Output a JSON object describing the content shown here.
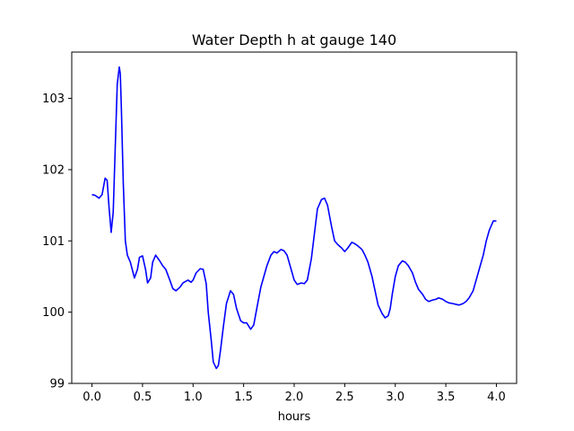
{
  "chart_data": {
    "type": "line",
    "title": "Water Depth h at gauge 140",
    "xlabel": "hours",
    "ylabel": "",
    "xlim": [
      -0.2,
      4.2
    ],
    "ylim": [
      99.0,
      103.65
    ],
    "grid": false,
    "xticks": [
      0.0,
      0.5,
      1.0,
      1.5,
      2.0,
      2.5,
      3.0,
      3.5,
      4.0
    ],
    "xtick_labels": [
      "0.0",
      "0.5",
      "1.0",
      "1.5",
      "2.0",
      "2.5",
      "3.0",
      "3.5",
      "4.0"
    ],
    "yticks": [
      99,
      100,
      101,
      102,
      103
    ],
    "ytick_labels": [
      "99",
      "100",
      "101",
      "102",
      "103"
    ],
    "series": [
      {
        "color": "#0000ff",
        "x": [
          0.0,
          0.03,
          0.07,
          0.1,
          0.13,
          0.15,
          0.17,
          0.19,
          0.21,
          0.23,
          0.25,
          0.27,
          0.28,
          0.29,
          0.31,
          0.33,
          0.35,
          0.38,
          0.42,
          0.45,
          0.47,
          0.5,
          0.53,
          0.55,
          0.58,
          0.6,
          0.63,
          0.67,
          0.7,
          0.73,
          0.77,
          0.8,
          0.83,
          0.87,
          0.9,
          0.95,
          0.98,
          1.0,
          1.03,
          1.07,
          1.1,
          1.13,
          1.15,
          1.18,
          1.2,
          1.23,
          1.25,
          1.27,
          1.3,
          1.33,
          1.37,
          1.4,
          1.43,
          1.47,
          1.5,
          1.53,
          1.57,
          1.6,
          1.63,
          1.67,
          1.7,
          1.73,
          1.77,
          1.8,
          1.83,
          1.87,
          1.9,
          1.93,
          1.97,
          2.0,
          2.03,
          2.07,
          2.1,
          2.13,
          2.17,
          2.2,
          2.23,
          2.27,
          2.3,
          2.33,
          2.35,
          2.37,
          2.4,
          2.43,
          2.47,
          2.5,
          2.53,
          2.57,
          2.6,
          2.63,
          2.67,
          2.7,
          2.73,
          2.77,
          2.8,
          2.83,
          2.87,
          2.9,
          2.93,
          2.95,
          2.97,
          3.0,
          3.03,
          3.07,
          3.1,
          3.13,
          3.17,
          3.2,
          3.23,
          3.27,
          3.3,
          3.33,
          3.37,
          3.4,
          3.43,
          3.47,
          3.5,
          3.53,
          3.57,
          3.6,
          3.63,
          3.67,
          3.7,
          3.73,
          3.77,
          3.8,
          3.83,
          3.87,
          3.9,
          3.93,
          3.97,
          4.0
        ],
        "y": [
          101.65,
          101.64,
          101.6,
          101.65,
          101.88,
          101.85,
          101.45,
          101.12,
          101.4,
          102.3,
          103.2,
          103.44,
          103.35,
          102.9,
          101.8,
          101.0,
          100.8,
          100.7,
          100.48,
          100.6,
          100.77,
          100.79,
          100.6,
          100.41,
          100.48,
          100.7,
          100.8,
          100.72,
          100.65,
          100.6,
          100.45,
          100.33,
          100.3,
          100.35,
          100.41,
          100.45,
          100.42,
          100.45,
          100.55,
          100.61,
          100.6,
          100.4,
          100.0,
          99.6,
          99.3,
          99.21,
          99.25,
          99.45,
          99.8,
          100.12,
          100.3,
          100.25,
          100.05,
          99.88,
          99.85,
          99.85,
          99.76,
          99.82,
          100.05,
          100.35,
          100.5,
          100.65,
          100.8,
          100.85,
          100.83,
          100.88,
          100.86,
          100.8,
          100.6,
          100.45,
          100.39,
          100.41,
          100.4,
          100.45,
          100.75,
          101.1,
          101.45,
          101.58,
          101.6,
          101.5,
          101.35,
          101.2,
          101.0,
          100.95,
          100.9,
          100.85,
          100.9,
          100.98,
          100.96,
          100.93,
          100.88,
          100.8,
          100.7,
          100.5,
          100.3,
          100.1,
          99.98,
          99.92,
          99.95,
          100.05,
          100.25,
          100.5,
          100.65,
          100.72,
          100.7,
          100.65,
          100.55,
          100.42,
          100.32,
          100.25,
          100.18,
          100.15,
          100.17,
          100.18,
          100.2,
          100.18,
          100.15,
          100.13,
          100.12,
          100.11,
          100.1,
          100.12,
          100.15,
          100.2,
          100.3,
          100.45,
          100.6,
          100.8,
          101.0,
          101.15,
          101.28,
          101.28
        ]
      }
    ]
  }
}
